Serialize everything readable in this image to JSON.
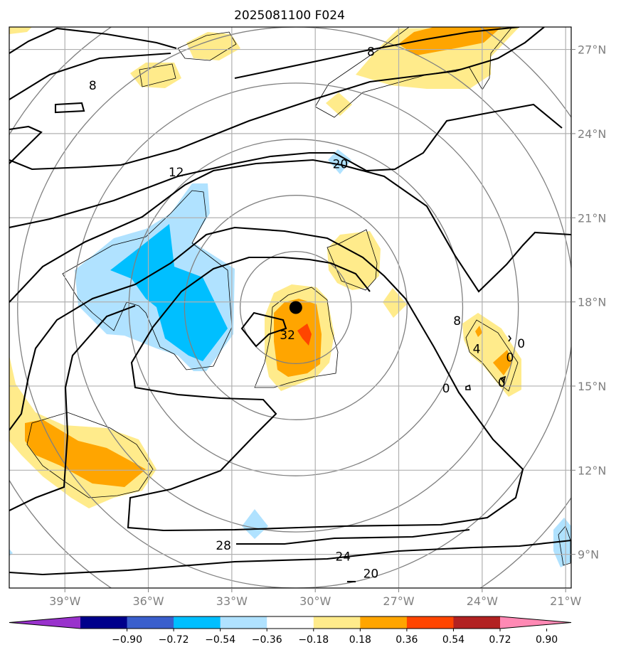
{
  "chart_data": {
    "type": "contour-map",
    "title": "2025081100 F024",
    "x_axis": {
      "range_deg": [
        -41.0,
        -20.8
      ],
      "ticks": [
        {
          "value": -39,
          "label": "39°W"
        },
        {
          "value": -36,
          "label": "36°W"
        },
        {
          "value": -33,
          "label": "33°W"
        },
        {
          "value": -30,
          "label": "30°W"
        },
        {
          "value": -27,
          "label": "27°W"
        },
        {
          "value": -24,
          "label": "24°W"
        },
        {
          "value": -21,
          "label": "21°W"
        }
      ]
    },
    "y_axis": {
      "range_deg": [
        7.8,
        27.8
      ],
      "position": "right",
      "ticks": [
        {
          "value": 9,
          "label": "9°N"
        },
        {
          "value": 12,
          "label": "12°N"
        },
        {
          "value": 15,
          "label": "15°N"
        },
        {
          "value": 18,
          "label": "18°N"
        },
        {
          "value": 21,
          "label": "21°N"
        },
        {
          "value": 24,
          "label": "24°N"
        },
        {
          "value": 27,
          "label": "27°N"
        }
      ]
    },
    "grid": true,
    "center": {
      "lon": -30.7,
      "lat": 17.8
    },
    "range_rings_deg": [
      2,
      4,
      6,
      8,
      10,
      12
    ],
    "contour_labels": [
      {
        "text": "8",
        "lon": -28.0,
        "lat": 26.9
      },
      {
        "text": "8",
        "lon": -38.0,
        "lat": 25.7
      },
      {
        "text": "12",
        "lon": -35.0,
        "lat": 22.6
      },
      {
        "text": "20",
        "lon": -29.1,
        "lat": 22.9
      },
      {
        "text": "32",
        "lon": -31.0,
        "lat": 16.8
      },
      {
        "text": "28",
        "lon": -33.3,
        "lat": 9.3
      },
      {
        "text": "24",
        "lon": -29.0,
        "lat": 8.9
      },
      {
        "text": "20",
        "lon": -28.0,
        "lat": 8.3
      },
      {
        "text": "8",
        "lon": -24.9,
        "lat": 17.3
      },
      {
        "text": "4",
        "lon": -24.2,
        "lat": 16.3
      },
      {
        "text": "0",
        "lon": -23.0,
        "lat": 16.0
      },
      {
        "text": "0",
        "lon": -22.6,
        "lat": 16.5
      },
      {
        "text": "0",
        "lon": -23.3,
        "lat": 15.1
      },
      {
        "text": "0",
        "lon": -25.3,
        "lat": 14.9
      }
    ],
    "colorbar": {
      "levels": [
        -0.9,
        -0.72,
        -0.54,
        -0.36,
        -0.18,
        0.18,
        0.36,
        0.54,
        0.72,
        0.9
      ],
      "labels": [
        "−0.90",
        "−0.72",
        "−0.54",
        "−0.36",
        "−0.18",
        "0.18",
        "0.36",
        "0.54",
        "0.72",
        "0.90"
      ],
      "colors": [
        "#9932cc",
        "#00008b",
        "#3a5fcd",
        "#00bfff",
        "#b0e2ff",
        "#ffffff",
        "#ffeb8b",
        "#ffa500",
        "#ff4500",
        "#b22222",
        "#ff89b4"
      ],
      "extend": "both"
    }
  }
}
